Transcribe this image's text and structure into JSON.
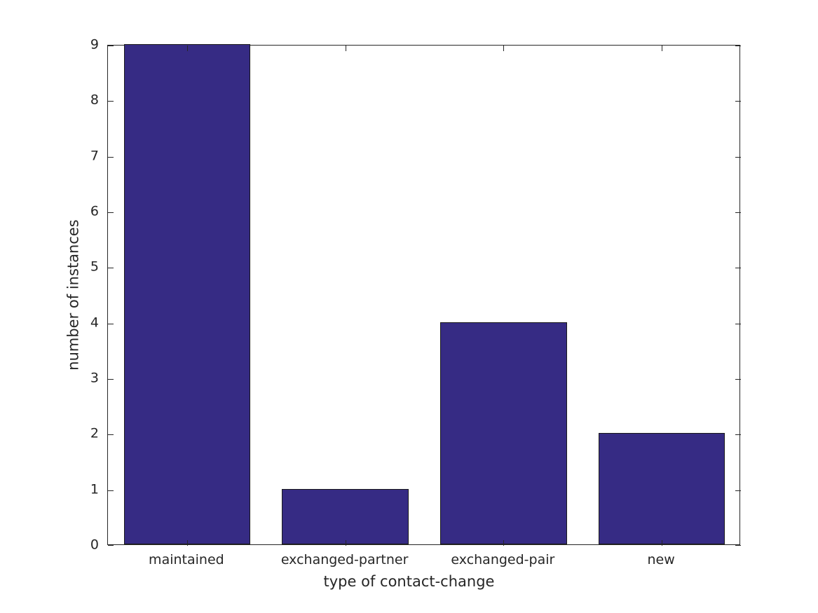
{
  "chart_data": {
    "type": "bar",
    "categories": [
      "maintained",
      "exchanged-partner",
      "exchanged-pair",
      "new"
    ],
    "values": [
      9,
      1,
      4,
      2
    ],
    "title": "",
    "xlabel": "type of contact-change",
    "ylabel": "number of instances",
    "ylim": [
      0,
      9
    ],
    "yticks": [
      0,
      1,
      2,
      3,
      4,
      5,
      6,
      7,
      8,
      9
    ],
    "bar_width_fraction": 0.8,
    "grid": false,
    "legend": "none",
    "colors": {
      "bar_fill": "#362b84",
      "bar_edge": "#1a1a1a",
      "axis": "#262626",
      "text": "#262626",
      "background": "#ffffff"
    }
  }
}
